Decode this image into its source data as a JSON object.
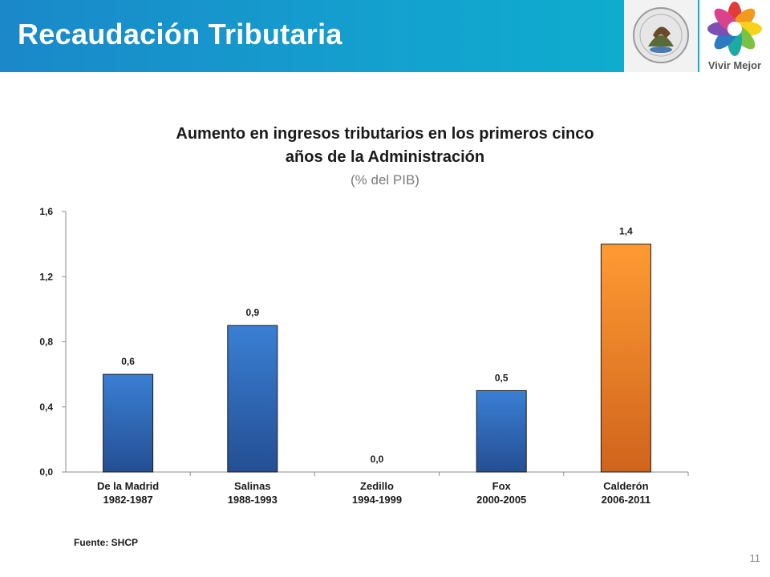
{
  "header": {
    "title": "Recaudación Tributaria",
    "logo_text": "Vivir Mejor"
  },
  "colors": {
    "header_start": "#1a88c9",
    "header_end": "#0ab3cc",
    "bar_blue": "#2e6ec4",
    "bar_orange": "#f0852a"
  },
  "chart_data": {
    "type": "bar",
    "title_line1": "Aumento en ingresos tributarios en los primeros cinco",
    "title_line2": "años de la Administración",
    "subtitle": "(% del PIB)",
    "categories": [
      {
        "name": "De la Madrid",
        "period": "1982-1987"
      },
      {
        "name": "Salinas",
        "period": "1988-1993"
      },
      {
        "name": "Zedillo",
        "period": "1994-1999"
      },
      {
        "name": "Fox",
        "period": "2000-2005"
      },
      {
        "name": "Calderón",
        "period": "2006-2011"
      }
    ],
    "values": [
      0.6,
      0.9,
      0.0,
      0.5,
      1.4
    ],
    "labels": [
      "0,6",
      "0,9",
      "0,0",
      "0,5",
      "1,4"
    ],
    "bar_colors": [
      "blue",
      "blue",
      "blue",
      "blue",
      "orange"
    ],
    "ylim": [
      0,
      1.6
    ],
    "yticks": [
      {
        "value": 0.0,
        "label": "0,0"
      },
      {
        "value": 0.4,
        "label": "0,4"
      },
      {
        "value": 0.8,
        "label": "0,8"
      },
      {
        "value": 1.2,
        "label": "1,2"
      },
      {
        "value": 1.6,
        "label": "1,6"
      }
    ],
    "grid": false,
    "legend": "none"
  },
  "footer": {
    "source": "Fuente: SHCP",
    "page_number": "11"
  }
}
